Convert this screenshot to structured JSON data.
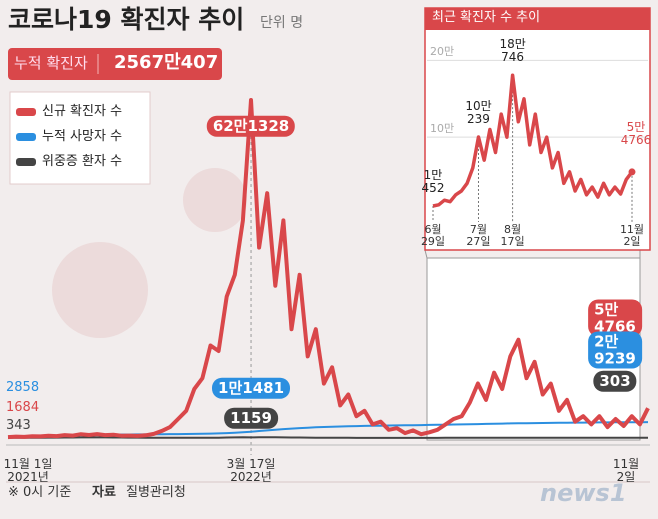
{
  "header": {
    "title": "코로나19 확진자 추이",
    "unit": "단위 명",
    "total_label": "누적 확진자",
    "total_value": "2567만407"
  },
  "chart_data": [
    {
      "type": "line",
      "categories": [
        "11월 1일\n2021년",
        null,
        null,
        null,
        null,
        null,
        null,
        null,
        null,
        null,
        null,
        null,
        null,
        null,
        null,
        null,
        null,
        null,
        null,
        null,
        null,
        null,
        null,
        null,
        null,
        null,
        null,
        null,
        null,
        null,
        "3월 17일\n2022년",
        null,
        null,
        null,
        null,
        null,
        null,
        null,
        null,
        null,
        null,
        null,
        null,
        null,
        null,
        null,
        null,
        null,
        null,
        null,
        null,
        null,
        null,
        null,
        null,
        null,
        null,
        null,
        null,
        null,
        null,
        null,
        null,
        null,
        null,
        null,
        null,
        null,
        null,
        null,
        null,
        null,
        null,
        null,
        null,
        null,
        null,
        null,
        null,
        "11월 2일"
      ],
      "series": [
        {
          "name": "신규 확진자 수",
          "color": "#d9474a",
          "values": [
            1684,
            2500,
            2100,
            3200,
            2900,
            4100,
            3500,
            5300,
            4400,
            7000,
            5500,
            7100,
            5400,
            6000,
            4200,
            4500,
            3800,
            5000,
            7500,
            13000,
            20000,
            35000,
            50000,
            90000,
            110000,
            170000,
            160000,
            260000,
            300000,
            400000,
            621328,
            350000,
            450000,
            280000,
            400000,
            200000,
            300000,
            150000,
            200000,
            100000,
            130000,
            60000,
            80000,
            40000,
            50000,
            25000,
            30000,
            15000,
            18000,
            9000,
            14000,
            7000,
            10452,
            15000,
            25000,
            35000,
            40000,
            65000,
            100239,
            70000,
            120000,
            90000,
            150000,
            180746,
            110000,
            140000,
            80000,
            100000,
            50000,
            70000,
            30000,
            40000,
            25000,
            40000,
            20000,
            35000,
            22000,
            40000,
            25000,
            54766
          ],
          "value_labels": [
            null,
            null,
            null,
            null,
            null,
            null,
            null,
            null,
            null,
            null,
            null,
            null,
            null,
            null,
            null,
            null,
            null,
            null,
            null,
            null,
            null,
            null,
            null,
            null,
            null,
            null,
            null,
            null,
            null,
            null,
            "62만1328",
            null,
            null,
            null,
            null,
            null,
            null,
            null,
            null,
            null,
            null,
            null,
            null,
            null,
            null,
            null,
            null,
            null,
            null,
            null,
            null,
            null,
            null,
            null,
            null,
            null,
            null,
            null,
            null,
            null,
            null,
            null,
            null,
            null,
            null,
            null,
            null,
            null,
            null,
            null,
            null,
            null,
            null,
            null,
            null,
            null,
            null,
            null,
            null,
            "5만4766"
          ]
        },
        {
          "name": "누적 사망자 수",
          "color": "#2b8fe0",
          "values": [
            2858,
            3100,
            3350,
            3600,
            3900,
            4200,
            4500,
            4800,
            5100,
            5400,
            5700,
            5900,
            6100,
            6300,
            6400,
            6500,
            6600,
            6700,
            6800,
            6950,
            7100,
            7250,
            7400,
            7600,
            7800,
            8100,
            8500,
            9000,
            9700,
            10500,
            11481,
            12800,
            14000,
            15200,
            16300,
            17300,
            18200,
            19000,
            19700,
            20300,
            20800,
            21200,
            21600,
            21900,
            22200,
            22500,
            22700,
            22900,
            23100,
            23300,
            23500,
            23700,
            24000,
            24300,
            24500,
            24800,
            25000,
            25300,
            25600,
            25900,
            26200,
            26500,
            26800,
            27000,
            27200,
            27400,
            27600,
            27800,
            28000,
            28200,
            28300,
            28400,
            28500,
            28600,
            28700,
            28800,
            28900,
            29000,
            29100,
            29239
          ],
          "value_labels": [
            null,
            null,
            null,
            null,
            null,
            null,
            null,
            null,
            null,
            null,
            null,
            null,
            null,
            null,
            null,
            null,
            null,
            null,
            null,
            null,
            null,
            null,
            null,
            null,
            null,
            null,
            null,
            null,
            null,
            null,
            "1만1481",
            null,
            null,
            null,
            null,
            null,
            null,
            null,
            null,
            null,
            null,
            null,
            null,
            null,
            null,
            null,
            null,
            null,
            null,
            null,
            null,
            null,
            null,
            null,
            null,
            null,
            null,
            null,
            null,
            null,
            null,
            null,
            null,
            null,
            null,
            null,
            null,
            null,
            null,
            null,
            null,
            null,
            null,
            null,
            null,
            null,
            null,
            null,
            null,
            "2만9239"
          ]
        },
        {
          "name": "위중증 환자 수",
          "color": "#444444",
          "values": [
            343,
            400,
            470,
            550,
            640,
            730,
            820,
            900,
            980,
            1050,
            1080,
            1100,
            1050,
            1000,
            900,
            800,
            700,
            600,
            500,
            430,
            400,
            380,
            300,
            280,
            300,
            400,
            600,
            900,
            1100,
            1200,
            1159,
            1250,
            1300,
            1250,
            1150,
            1000,
            850,
            700,
            550,
            450,
            380,
            330,
            290,
            250,
            220,
            200,
            180,
            160,
            150,
            140,
            140,
            150,
            180,
            230,
            300,
            400,
            480,
            530,
            560,
            540,
            500,
            450,
            420,
            390,
            360,
            340,
            320,
            310,
            300,
            290,
            290,
            280,
            280,
            290,
            300,
            310,
            320,
            330,
            310,
            303
          ]
        }
      ]
    },
    {
      "type": "line",
      "title": "최근 확진자 수 추이",
      "categories": [
        "6월\n29일",
        null,
        null,
        null,
        null,
        null,
        null,
        null,
        "7월\n27일",
        null,
        null,
        null,
        null,
        null,
        "8월\n17일",
        null,
        null,
        null,
        null,
        null,
        null,
        null,
        null,
        null,
        null,
        null,
        null,
        null,
        null,
        null,
        null,
        null,
        null,
        null,
        null,
        "11월\n2일"
      ],
      "values": [
        10452,
        12000,
        18000,
        16000,
        25000,
        30000,
        40000,
        60000,
        100239,
        70000,
        110000,
        80000,
        130000,
        100000,
        180746,
        120000,
        150000,
        90000,
        130000,
        80000,
        100000,
        60000,
        80000,
        40000,
        55000,
        30000,
        45000,
        25000,
        35000,
        22000,
        40000,
        25000,
        35000,
        26000,
        45000,
        54766
      ],
      "value_labels": [
        "1만\n452",
        null,
        null,
        null,
        null,
        null,
        null,
        null,
        "10만\n239",
        null,
        null,
        null,
        null,
        null,
        "18만\n746",
        null,
        null,
        null,
        null,
        null,
        null,
        null,
        null,
        null,
        null,
        null,
        null,
        null,
        null,
        null,
        null,
        null,
        null,
        null,
        null,
        "5만\n4766"
      ],
      "color": "#d9474a",
      "ylim": [
        0,
        220000
      ],
      "yticks": [
        {
          "value": 100000,
          "label": "10만"
        },
        {
          "value": 200000,
          "label": "20만"
        }
      ],
      "grid": true
    }
  ],
  "footer": {
    "note": "※ 0시 기준",
    "source_label": "자료",
    "source": "질병관리청"
  },
  "logo": "news1"
}
